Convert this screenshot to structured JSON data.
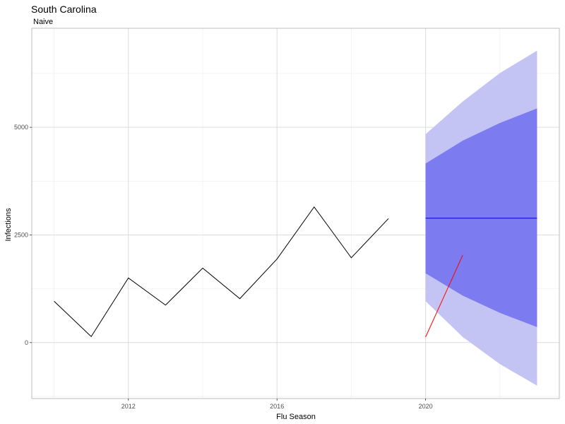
{
  "chart_data": {
    "type": "line",
    "title": "South Carolina",
    "subtitle": "Naive",
    "xlabel": "Flu Season",
    "ylabel": "Infections",
    "xlim": [
      2009.4,
      2023.6
    ],
    "ylim": [
      -1300,
      7300
    ],
    "x_ticks": [
      2012,
      2016,
      2020
    ],
    "y_ticks": [
      0,
      2500,
      5000
    ],
    "x_tick_labels": [
      "2012",
      "2016",
      "2020"
    ],
    "y_tick_labels": [
      "0",
      "2500",
      "5000"
    ],
    "grid": true,
    "series": [
      {
        "color": "#000000",
        "x": [
          2010,
          2011,
          2012,
          2013,
          2014,
          2015,
          2016,
          2017,
          2018,
          2019
        ],
        "values": [
          960,
          140,
          1500,
          870,
          1730,
          1020,
          1940,
          3150,
          1970,
          2880
        ]
      },
      {
        "color": "#ff0000",
        "x": [
          2020,
          2021
        ],
        "values": [
          130,
          2030
        ]
      },
      {
        "color": "#0000cc",
        "x": [
          2020,
          2021,
          2022,
          2023
        ],
        "values": [
          2890,
          2890,
          2890,
          2890
        ]
      }
    ],
    "bands": [
      {
        "level": "95",
        "color": "#c4c4f4",
        "x": [
          2020,
          2021,
          2022,
          2023
        ],
        "lower": [
          960,
          130,
          -500,
          -1000
        ],
        "upper": [
          4840,
          5600,
          6260,
          6780
        ]
      },
      {
        "level": "80",
        "color": "#7c7cf0",
        "x": [
          2020,
          2021,
          2022,
          2023
        ],
        "lower": [
          1610,
          1090,
          690,
          360
        ],
        "upper": [
          4160,
          4690,
          5100,
          5440
        ]
      }
    ]
  }
}
